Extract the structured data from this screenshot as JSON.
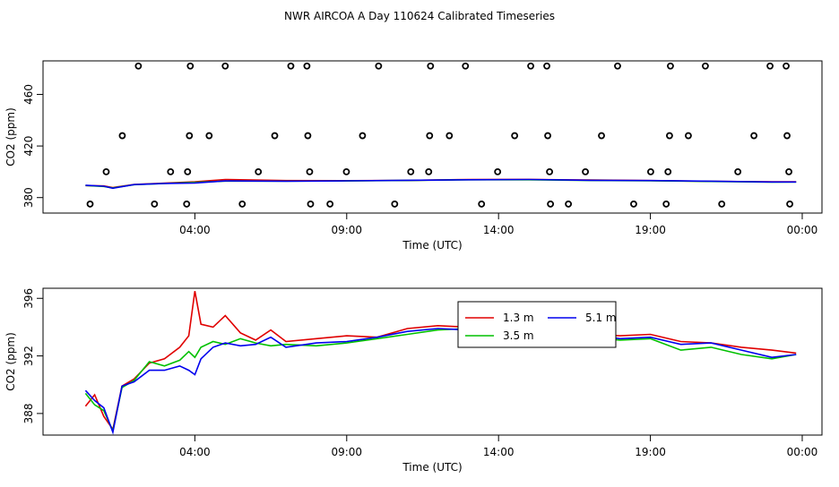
{
  "title": "NWR AIRCOA A  Day 110624  Calibrated Timeseries",
  "chart_data": [
    {
      "type": "line",
      "xlabel": "Time (UTC)",
      "ylabel": "CO2 (ppm)",
      "xlim": [
        -1.0,
        24.65
      ],
      "ylim": [
        368,
        486
      ],
      "xticks": [
        {
          "value": 4,
          "label": "04:00"
        },
        {
          "value": 9,
          "label": "09:00"
        },
        {
          "value": 14,
          "label": "14:00"
        },
        {
          "value": 19,
          "label": "19:00"
        },
        {
          "value": 24,
          "label": "00:00"
        }
      ],
      "yticks": [
        380,
        420,
        460
      ],
      "x": [
        0.4,
        1.0,
        1.3,
        2,
        3,
        4,
        5,
        7,
        9,
        11,
        13,
        15,
        17,
        19,
        21,
        23,
        23.8
      ],
      "series": [
        {
          "color": "#e00000",
          "values": [
            389.3,
            389.0,
            387.8,
            390.2,
            391.2,
            392.2,
            394.0,
            393.2,
            393.1,
            393.3,
            394.0,
            394.1,
            393.6,
            393.2,
            392.6,
            392.3,
            392.2
          ]
        },
        {
          "color": "#00c000",
          "values": [
            389.4,
            388.6,
            387.5,
            390.0,
            391.0,
            391.8,
            392.8,
            392.8,
            392.9,
            393.3,
            393.8,
            393.8,
            393.3,
            393.0,
            392.5,
            392.0,
            392.1
          ]
        },
        {
          "color": "#0000ee",
          "values": [
            389.6,
            388.8,
            387.2,
            390.1,
            391.0,
            391.3,
            392.9,
            392.7,
            393.0,
            393.4,
            393.8,
            394.0,
            393.4,
            393.2,
            392.7,
            392.1,
            392.1
          ]
        }
      ],
      "scatter": {
        "color": "#000000",
        "x": [
          0.55,
          1.08,
          1.61,
          2.14,
          2.67,
          3.2,
          3.73,
          3.76,
          3.82,
          3.85,
          4.47,
          5.0,
          5.56,
          6.09,
          6.63,
          7.16,
          7.69,
          7.72,
          7.78,
          7.81,
          8.45,
          8.99,
          9.52,
          10.05,
          10.58,
          11.11,
          11.7,
          11.73,
          11.76,
          12.38,
          12.91,
          13.44,
          13.97,
          14.53,
          15.06,
          15.59,
          15.62,
          15.68,
          15.71,
          16.3,
          16.86,
          17.39,
          17.92,
          18.45,
          19.01,
          19.52,
          19.58,
          19.63,
          19.66,
          20.25,
          20.81,
          21.35,
          21.88,
          22.41,
          22.94,
          23.47,
          23.5,
          23.56,
          23.59
        ],
        "values": [
          375,
          400,
          428,
          482,
          375,
          400,
          375,
          400,
          428,
          482,
          428,
          482,
          375,
          400,
          428,
          482,
          482,
          428,
          400,
          375,
          375,
          400,
          428,
          482,
          375,
          400,
          400,
          428,
          482,
          428,
          482,
          375,
          400,
          428,
          482,
          482,
          428,
          400,
          375,
          375,
          400,
          428,
          482,
          375,
          400,
          375,
          400,
          428,
          482,
          428,
          482,
          375,
          400,
          428,
          482,
          482,
          428,
          400,
          375
        ]
      }
    },
    {
      "type": "line",
      "xlabel": "Time (UTC)",
      "ylabel": "CO2 (ppm)",
      "xlim": [
        -1.0,
        24.65
      ],
      "ylim": [
        386.5,
        396.7
      ],
      "xticks": [
        {
          "value": 4,
          "label": "04:00"
        },
        {
          "value": 9,
          "label": "09:00"
        },
        {
          "value": 14,
          "label": "14:00"
        },
        {
          "value": 19,
          "label": "19:00"
        },
        {
          "value": 24,
          "label": "00:00"
        }
      ],
      "yticks": [
        388,
        392,
        396
      ],
      "legend": "top-right",
      "x": [
        0.4,
        0.7,
        1.0,
        1.3,
        1.6,
        2.0,
        2.5,
        3.0,
        3.5,
        3.8,
        4.0,
        4.2,
        4.6,
        5.0,
        5.5,
        6.0,
        6.5,
        7.0,
        8.0,
        9.0,
        10.0,
        11.0,
        12.0,
        13.0,
        14.0,
        14.5,
        15.0,
        16.0,
        17.0,
        18.0,
        19.0,
        20.0,
        21.0,
        22.0,
        23.0,
        23.8
      ],
      "series": [
        {
          "name": "1.3 m",
          "color": "#e00000",
          "values": [
            388.5,
            389.3,
            387.8,
            386.9,
            389.9,
            390.4,
            391.5,
            391.8,
            392.6,
            393.4,
            396.5,
            394.2,
            394.0,
            394.8,
            393.6,
            393.1,
            393.8,
            393.0,
            393.2,
            393.4,
            393.3,
            393.9,
            394.1,
            394.0,
            394.2,
            393.8,
            394.4,
            393.8,
            393.5,
            393.4,
            393.5,
            393.0,
            392.9,
            392.6,
            392.4,
            392.2
          ]
        },
        {
          "name": "3.5 m",
          "color": "#00c000",
          "values": [
            389.4,
            388.6,
            388.2,
            386.8,
            389.8,
            390.3,
            391.6,
            391.3,
            391.7,
            392.3,
            391.9,
            392.6,
            393.0,
            392.8,
            393.2,
            392.9,
            392.7,
            392.8,
            392.7,
            392.9,
            393.2,
            393.5,
            393.8,
            393.9,
            393.6,
            393.4,
            394.0,
            393.6,
            393.3,
            393.1,
            393.2,
            392.4,
            392.6,
            392.1,
            391.8,
            392.1
          ]
        },
        {
          "name": "5.1 m",
          "color": "#0000ee",
          "values": [
            389.6,
            388.9,
            388.4,
            386.7,
            389.9,
            390.2,
            391.0,
            391.0,
            391.3,
            391.0,
            390.7,
            391.8,
            392.6,
            392.9,
            392.7,
            392.8,
            393.3,
            392.6,
            392.9,
            393.0,
            393.3,
            393.7,
            393.9,
            393.8,
            393.8,
            393.6,
            394.3,
            393.6,
            393.5,
            393.2,
            393.3,
            392.8,
            392.9,
            392.4,
            391.9,
            392.1
          ]
        }
      ]
    }
  ]
}
